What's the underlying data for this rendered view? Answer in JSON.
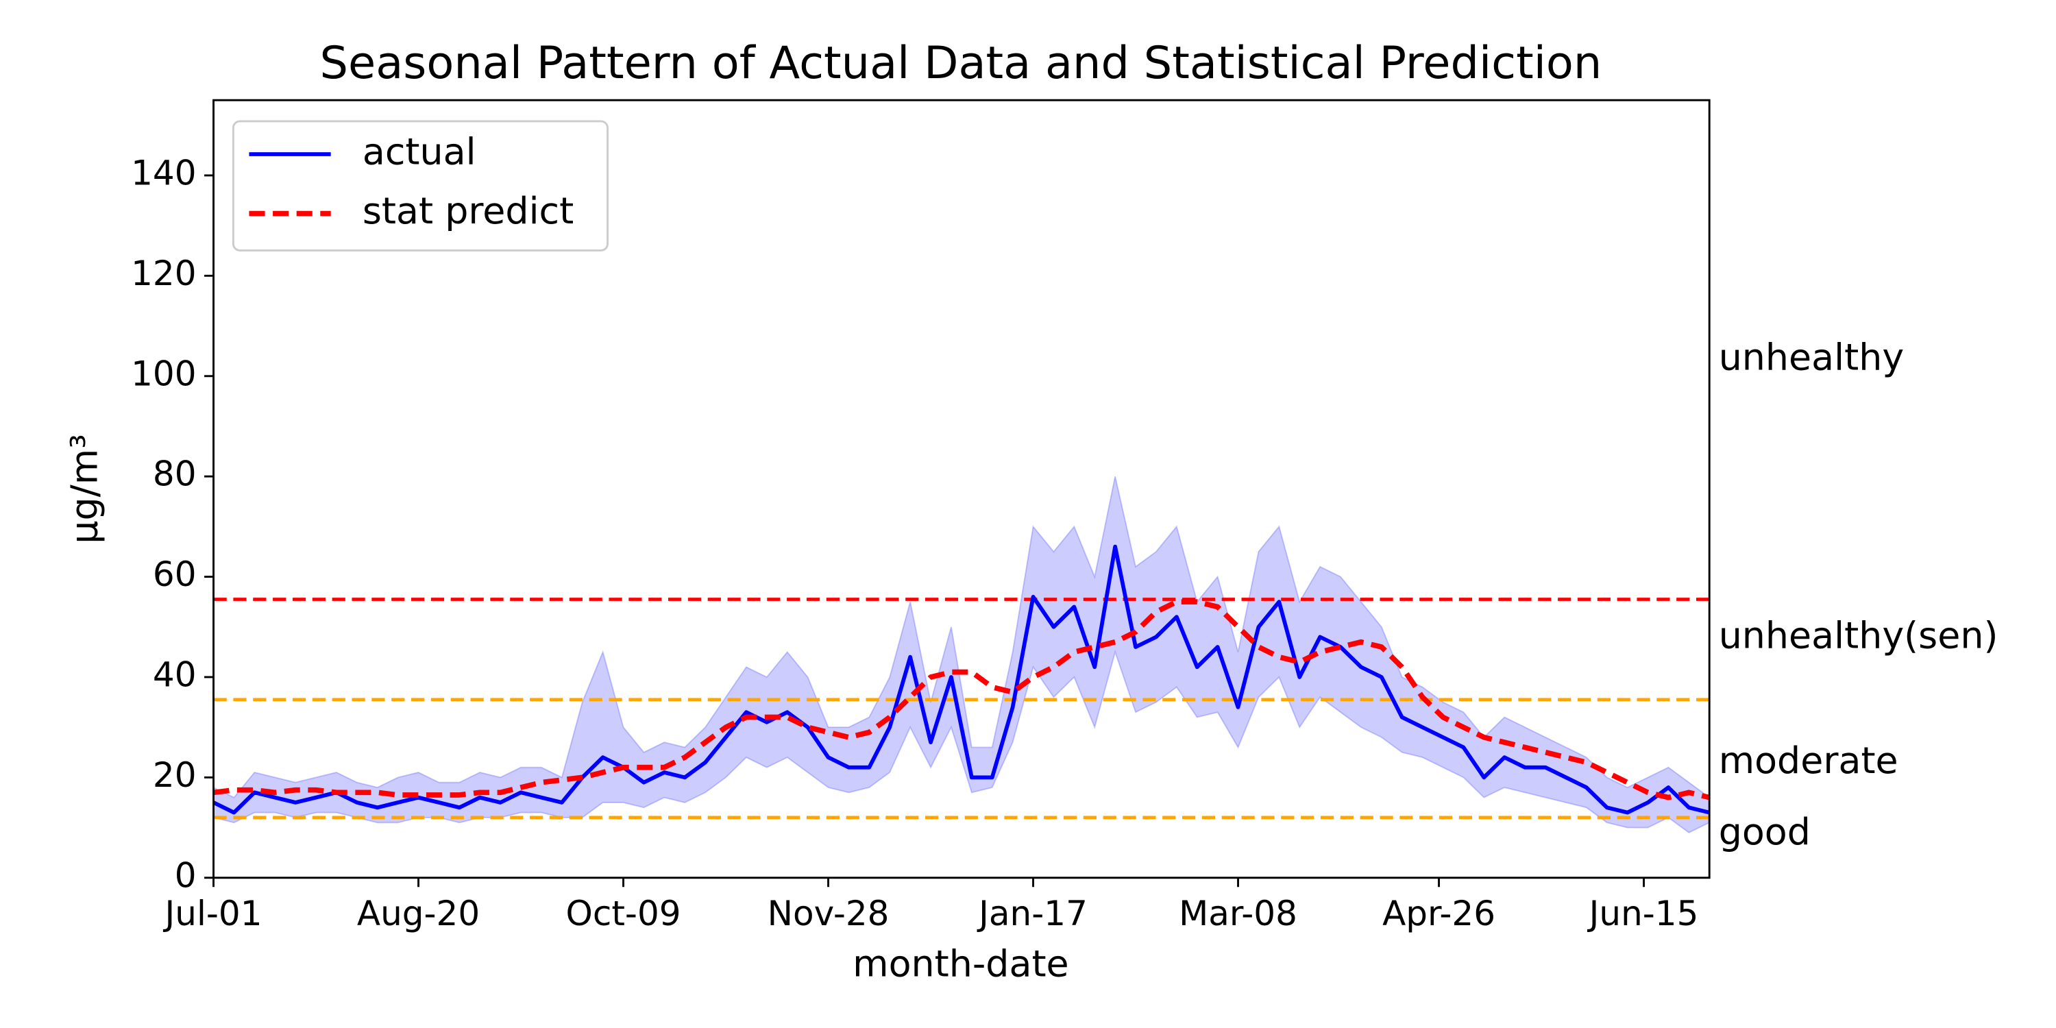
{
  "chart_data": {
    "type": "line",
    "title": "Seasonal Pattern of Actual Data and Statistical Prediction",
    "xlabel": "month-date",
    "ylabel": "μg/m³",
    "x": [
      0,
      5,
      10,
      15,
      20,
      25,
      30,
      35,
      40,
      45,
      50,
      55,
      60,
      65,
      70,
      75,
      80,
      85,
      90,
      95,
      100,
      105,
      110,
      115,
      120,
      125,
      130,
      135,
      140,
      145,
      150,
      155,
      160,
      165,
      170,
      175,
      180,
      185,
      190,
      195,
      200,
      205,
      210,
      215,
      220,
      225,
      230,
      235,
      240,
      245,
      250,
      255,
      260,
      265,
      270,
      275,
      280,
      285,
      290,
      295,
      300,
      305,
      310,
      315,
      320,
      325,
      330,
      335,
      340,
      345,
      350,
      355,
      360,
      365
    ],
    "xlim": [
      0,
      365
    ],
    "xticks": [
      {
        "value": 0,
        "label": "Jul-01"
      },
      {
        "value": 50,
        "label": "Aug-20"
      },
      {
        "value": 100,
        "label": "Oct-09"
      },
      {
        "value": 150,
        "label": "Nov-28"
      },
      {
        "value": 200,
        "label": "Jan-17"
      },
      {
        "value": 250,
        "label": "Mar-08"
      },
      {
        "value": 299,
        "label": "Apr-26"
      },
      {
        "value": 349,
        "label": "Jun-15"
      }
    ],
    "ylim": [
      0,
      155
    ],
    "yticks": [
      0,
      20,
      40,
      60,
      80,
      100,
      120,
      140
    ],
    "legend": "upper left",
    "series": [
      {
        "name": "actual",
        "color": "#0000ff",
        "dash": false,
        "values": [
          15,
          13,
          17,
          16,
          15,
          16,
          17,
          15,
          14,
          15,
          16,
          15,
          14,
          16,
          15,
          17,
          16,
          15,
          20,
          24,
          22,
          19,
          21,
          20,
          23,
          28,
          33,
          31,
          33,
          30,
          24,
          22,
          22,
          30,
          44,
          27,
          40,
          20,
          20,
          34,
          56,
          50,
          54,
          42,
          66,
          46,
          48,
          52,
          42,
          46,
          34,
          50,
          55,
          40,
          48,
          46,
          42,
          40,
          32,
          30,
          28,
          26,
          20,
          24,
          22,
          22,
          20,
          18,
          14,
          13,
          15,
          18,
          14,
          13
        ]
      },
      {
        "name": "stat predict",
        "color": "#ff0000",
        "dash": true,
        "values": [
          17,
          17.5,
          17.5,
          17,
          17.5,
          17.5,
          17,
          17,
          17,
          16.5,
          16.5,
          16.5,
          16.5,
          17,
          17,
          18,
          19,
          19.5,
          20,
          21,
          22,
          22,
          22,
          24,
          27,
          30,
          32,
          32,
          32,
          30,
          29,
          28,
          29,
          32,
          36,
          40,
          41,
          41,
          38,
          37,
          40,
          42,
          45,
          46,
          47,
          49,
          53,
          55,
          55,
          54,
          50,
          46,
          44,
          43,
          45,
          46,
          47,
          46,
          42,
          36,
          32,
          30,
          28,
          27,
          26,
          25,
          24,
          23,
          21,
          19,
          17,
          16,
          17,
          16
        ]
      }
    ],
    "band": {
      "color": "#0000ff",
      "alpha": 0.2,
      "lower": [
        12,
        11,
        13,
        13,
        12,
        13,
        13,
        12,
        11,
        11,
        12,
        12,
        11,
        12,
        12,
        13,
        13,
        12,
        12,
        15,
        15,
        14,
        16,
        15,
        17,
        20,
        24,
        22,
        24,
        21,
        18,
        17,
        18,
        21,
        30,
        22,
        30,
        17,
        18,
        27,
        42,
        36,
        40,
        30,
        45,
        33,
        35,
        38,
        32,
        33,
        26,
        36,
        40,
        30,
        36,
        33,
        30,
        28,
        25,
        24,
        22,
        20,
        16,
        18,
        17,
        16,
        15,
        14,
        11,
        10,
        10,
        12,
        9,
        11
      ],
      "upper": [
        18,
        16,
        21,
        20,
        19,
        20,
        21,
        19,
        18,
        20,
        21,
        19,
        19,
        21,
        20,
        22,
        22,
        20,
        35,
        45,
        30,
        25,
        27,
        26,
        30,
        36,
        42,
        40,
        45,
        40,
        30,
        30,
        32,
        40,
        55,
        35,
        50,
        26,
        26,
        45,
        70,
        65,
        70,
        60,
        80,
        62,
        65,
        70,
        55,
        60,
        45,
        65,
        70,
        55,
        62,
        60,
        55,
        50,
        40,
        38,
        35,
        33,
        28,
        32,
        30,
        28,
        26,
        24,
        20,
        18,
        20,
        22,
        19,
        16
      ]
    },
    "hlines": [
      {
        "value": 12,
        "color": "#ffa500"
      },
      {
        "value": 35.5,
        "color": "#ffa500"
      },
      {
        "value": 55.5,
        "color": "#ff0000"
      }
    ],
    "level_labels": [
      "unhealthy",
      "unhealthy(sen)",
      "moderate",
      "good"
    ]
  }
}
